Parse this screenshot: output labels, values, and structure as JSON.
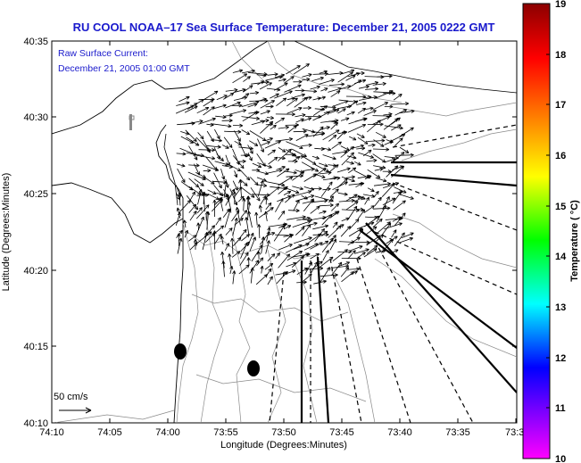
{
  "title": "RU COOL  NOAA–17  Sea Surface Temperature:  December 21, 2005 0222 GMT",
  "legend": {
    "line1": "Raw Surface Current:",
    "line2": "December 21, 2005 01:00 GMT"
  },
  "scale_label": "50 cm/s",
  "x_axis": {
    "label": "Longitude (Degrees:Minutes)",
    "ticks": [
      "74:10",
      "74:05",
      "74:00",
      "73:55",
      "73:50",
      "73:45",
      "73:40",
      "73:35",
      "73:3"
    ]
  },
  "y_axis": {
    "label": "Latitude (Degrees:Minutes)",
    "ticks": [
      "40:35",
      "40:30",
      "40:25",
      "40:20",
      "40:15",
      "40:10"
    ]
  },
  "colorbar": {
    "label": "Temperature ( °C)",
    "ticks": [
      "19",
      "18",
      "17",
      "16",
      "15",
      "14",
      "13",
      "12",
      "11",
      "10"
    ],
    "colors": [
      "#8b0000",
      "#ff0000",
      "#ff7f00",
      "#ffff00",
      "#00ff00",
      "#00ffff",
      "#0000ff",
      "#8000ff",
      "#ff00ff"
    ]
  },
  "map": {
    "type": "surface current vector map",
    "xlim": [
      "74:10",
      "73:30"
    ],
    "ylim": [
      "40:10",
      "40:35"
    ]
  }
}
